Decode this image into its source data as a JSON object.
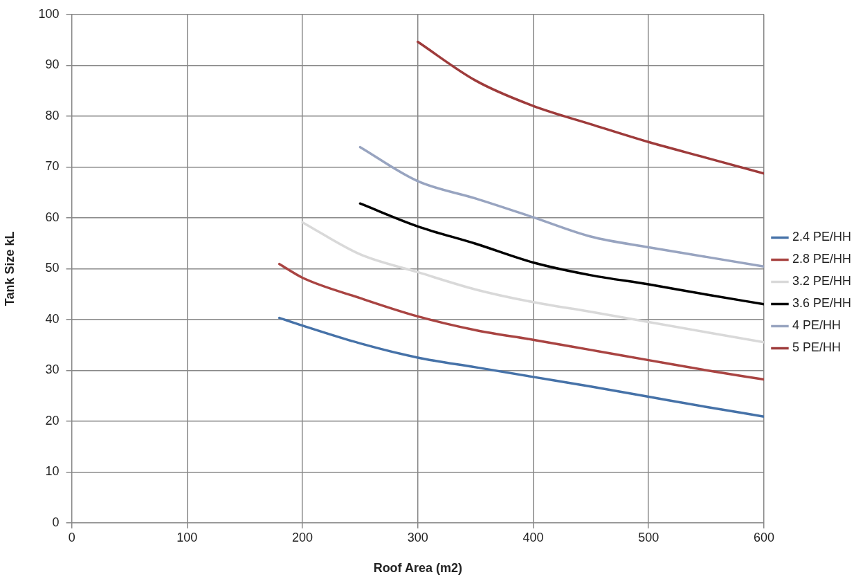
{
  "chart_data": {
    "type": "line",
    "xlabel": "Roof Area (m2)",
    "ylabel": "Tank Size kL",
    "xlim": [
      0,
      600
    ],
    "ylim": [
      0,
      100
    ],
    "xticks": [
      0,
      100,
      200,
      300,
      400,
      500,
      600
    ],
    "yticks": [
      0,
      10,
      20,
      30,
      40,
      50,
      60,
      70,
      80,
      90,
      100
    ],
    "grid": true,
    "legend": "right",
    "marker": "none",
    "series": [
      {
        "name": "2.4 PE/HH",
        "color": "#4672a8",
        "x": [
          180,
          200,
          250,
          300,
          350,
          400,
          450,
          500,
          550,
          600
        ],
        "values": [
          40.3,
          38.8,
          35.3,
          32.5,
          30.6,
          28.7,
          26.8,
          24.8,
          22.8,
          20.9
        ]
      },
      {
        "name": "2.8 PE/HH",
        "color": "#a94442",
        "x": [
          180,
          200,
          250,
          300,
          350,
          400,
          450,
          500,
          550,
          600
        ],
        "values": [
          50.9,
          48.2,
          44.2,
          40.6,
          37.9,
          36.0,
          34.0,
          32.0,
          30.0,
          28.2
        ]
      },
      {
        "name": "3.2 PE/HH",
        "color": "#d9d9d9",
        "x": [
          200,
          250,
          300,
          350,
          400,
          450,
          500,
          550,
          600
        ],
        "values": [
          59.1,
          52.8,
          49.3,
          45.9,
          43.4,
          41.5,
          39.5,
          37.5,
          35.5
        ]
      },
      {
        "name": "3.6 PE/HH",
        "color": "#000000",
        "x": [
          250,
          300,
          350,
          400,
          450,
          500,
          550,
          600
        ],
        "values": [
          62.8,
          58.3,
          54.9,
          51.2,
          48.7,
          46.9,
          44.9,
          43.0
        ]
      },
      {
        "name": "4 PE/HH",
        "color": "#98a4c0",
        "x": [
          250,
          300,
          350,
          400,
          450,
          500,
          550,
          600
        ],
        "values": [
          73.9,
          67.2,
          63.8,
          60.1,
          56.3,
          54.2,
          52.3,
          50.4
        ]
      },
      {
        "name": "5 PE/HH",
        "color": "#9e3b3b",
        "x": [
          300,
          350,
          400,
          450,
          500,
          550,
          600
        ],
        "values": [
          94.6,
          87.0,
          82.0,
          78.4,
          74.9,
          71.8,
          68.7
        ]
      }
    ]
  }
}
